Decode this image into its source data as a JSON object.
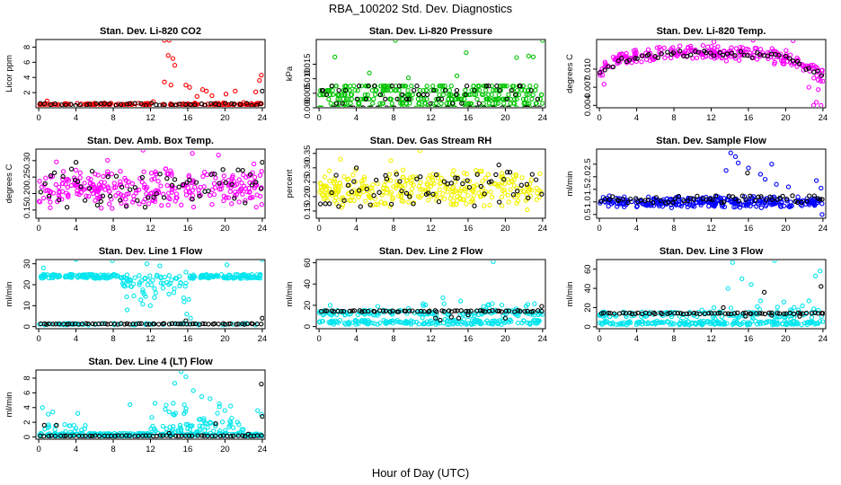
{
  "figure": {
    "title": "RBA_100202  Std. Dev. Diagnostics",
    "xlabel": "Hour of Day (UTC)"
  },
  "chart_data": [
    {
      "type": "scatter",
      "title": "Stan. Dev. Li-820 CO2",
      "ylabel": "Licor ppm",
      "xlim": [
        -0.3,
        24.3
      ],
      "ylim": [
        0,
        9
      ],
      "xticks": [
        0,
        4,
        8,
        12,
        16,
        20,
        24
      ],
      "xtick_labels": [
        "0",
        "4",
        "8",
        "12",
        "16",
        "20",
        "24"
      ],
      "yticks": [
        2,
        4,
        6,
        8
      ],
      "ytick_labels": [
        "2",
        "4",
        "6",
        "8"
      ],
      "color": "#ff0000",
      "series_colors": {
        "main": "#ff0000",
        "highlight": "#000000"
      },
      "gen": {
        "kind": "base",
        "base": 0.45,
        "amp": 0.25,
        "n": 170,
        "spikes": [
          [
            13.5,
            8.9
          ],
          [
            14.0,
            8.9
          ],
          [
            13.9,
            6.9
          ],
          [
            14.4,
            6.5
          ],
          [
            14.6,
            5.6
          ],
          [
            13.5,
            3.4
          ],
          [
            14.2,
            3.0
          ],
          [
            15.8,
            3.0
          ],
          [
            16.2,
            2.7
          ],
          [
            17.6,
            2.4
          ],
          [
            18.0,
            2.2
          ],
          [
            17.0,
            1.5
          ],
          [
            18.6,
            1.6
          ],
          [
            20.1,
            1.8
          ],
          [
            21.1,
            2.2
          ],
          [
            23.9,
            4.3
          ],
          [
            23.7,
            3.6
          ],
          [
            23.3,
            2.1
          ],
          [
            0.9,
            0.9
          ],
          [
            12.3,
            0.8
          ],
          [
            10.7,
            0.6
          ]
        ]
      },
      "hgen": {
        "base": 0.45,
        "amp": 0.15,
        "n": 45,
        "spikes": [
          [
            24.0,
            2.2
          ]
        ]
      }
    },
    {
      "type": "scatter",
      "title": "Stan. Dev. Li-820 Pressure",
      "ylabel": "kPa",
      "xlim": [
        -0.3,
        24.3
      ],
      "ylim": [
        0,
        0.0235
      ],
      "xticks": [
        0,
        4,
        8,
        12,
        16,
        20,
        24
      ],
      "xtick_labels": [
        "0",
        "4",
        "8",
        "12",
        "16",
        "20",
        "24"
      ],
      "yticks": [
        0,
        0.005,
        0.01,
        0.015
      ],
      "ytick_labels": [
        "0.000",
        "0.005",
        "0.010",
        "0.015"
      ],
      "color": "#00c400",
      "series_colors": {
        "main": "#00c400",
        "highlight": "#000000"
      },
      "gen": {
        "kind": "bands",
        "levels": [
          0.0,
          0.0015,
          0.003,
          0.0045,
          0.006,
          0.0075
        ],
        "n": 340,
        "spikes": [
          [
            8.2,
            0.0232
          ],
          [
            24.0,
            0.0232
          ],
          [
            1.7,
            0.0175
          ],
          [
            15.8,
            0.019
          ],
          [
            21.2,
            0.0173
          ],
          [
            22.5,
            0.0178
          ],
          [
            23.0,
            0.0175
          ],
          [
            5.4,
            0.012
          ],
          [
            14.8,
            0.011
          ],
          [
            9.6,
            0.0103
          ]
        ]
      },
      "hgen": {
        "kind": "bands",
        "levels": [
          0.0,
          0.0015,
          0.003,
          0.0045,
          0.006,
          0.0075
        ],
        "n": 70,
        "spikes": []
      }
    },
    {
      "type": "scatter",
      "title": "Stan. Dev. Li-820 Temp.",
      "ylabel": "degrees C",
      "xlim": [
        -0.3,
        24.3
      ],
      "ylim": [
        0.0036,
        0.0149
      ],
      "xticks": [
        0,
        4,
        8,
        12,
        16,
        20,
        24
      ],
      "xtick_labels": [
        "0",
        "4",
        "8",
        "12",
        "16",
        "20",
        "24"
      ],
      "yticks": [
        0.004,
        0.007,
        0.01
      ],
      "ytick_labels": [
        "0.004",
        "0.007",
        "0.010"
      ],
      "color": "#ff00ff",
      "series_colors": {
        "main": "#ff00ff",
        "highlight": "#000000"
      },
      "gen": {
        "kind": "curve",
        "pts": [
          [
            0,
            0.0095
          ],
          [
            2,
            0.0115
          ],
          [
            4,
            0.012
          ],
          [
            8,
            0.0128
          ],
          [
            12,
            0.0127
          ],
          [
            16,
            0.0125
          ],
          [
            20,
            0.012
          ],
          [
            22,
            0.0105
          ],
          [
            24,
            0.009
          ]
        ],
        "amp": 0.0014,
        "n": 260,
        "spikes": [
          [
            23.0,
            0.004
          ],
          [
            23.3,
            0.0045
          ],
          [
            23.8,
            0.004
          ],
          [
            12.3,
            0.0145
          ],
          [
            20.8,
            0.0147
          ],
          [
            16.5,
            0.0148
          ],
          [
            0.5,
            0.0075
          ],
          [
            22.5,
            0.007
          ],
          [
            23.5,
            0.0066
          ]
        ]
      },
      "hgen": {
        "kind": "curve",
        "pts": [
          [
            0,
            0.0095
          ],
          [
            2,
            0.0112
          ],
          [
            4,
            0.0118
          ],
          [
            8,
            0.0125
          ],
          [
            12,
            0.0126
          ],
          [
            16,
            0.0124
          ],
          [
            20,
            0.012
          ],
          [
            22,
            0.0105
          ],
          [
            24,
            0.009
          ]
        ],
        "amp": 0.0005,
        "n": 55,
        "spikes": []
      }
    },
    {
      "type": "scatter",
      "title": "Stan. Dev. Amb. Box Temp.",
      "ylabel": "degrees C",
      "xlim": [
        -0.3,
        24.3
      ],
      "ylim": [
        0.125,
        0.335
      ],
      "xticks": [
        0,
        4,
        8,
        12,
        16,
        20,
        24
      ],
      "xtick_labels": [
        "0",
        "4",
        "8",
        "12",
        "16",
        "20",
        "24"
      ],
      "yticks": [
        0.15,
        0.2,
        0.25,
        0.3
      ],
      "ytick_labels": [
        "0.15",
        "0.20",
        "0.25",
        "0.30"
      ],
      "color": "#ff00ff",
      "series_colors": {
        "main": "#ff00ff",
        "highlight": "#000000"
      },
      "gen": {
        "kind": "base",
        "base": 0.215,
        "amp": 0.065,
        "n": 300,
        "spikes": [
          [
            11.2,
            0.332
          ],
          [
            16.5,
            0.322
          ],
          [
            19.3,
            0.317
          ],
          [
            7.4,
            0.301
          ],
          [
            1.9,
            0.296
          ],
          [
            23.1,
            0.29
          ]
        ]
      },
      "hgen": {
        "base": 0.215,
        "amp": 0.06,
        "n": 60,
        "spikes": [
          [
            24.0,
            0.295
          ],
          [
            4.0,
            0.295
          ]
        ]
      }
    },
    {
      "type": "scatter",
      "title": "Stan. Dev. Gas Stream RH",
      "ylabel": "percent",
      "xlim": [
        -0.3,
        24.3
      ],
      "ylim": [
        0.125,
        0.365
      ],
      "xticks": [
        0,
        4,
        8,
        12,
        16,
        20,
        24
      ],
      "xtick_labels": [
        "0",
        "4",
        "8",
        "12",
        "16",
        "20",
        "24"
      ],
      "yticks": [
        0.15,
        0.2,
        0.25,
        0.3,
        0.35
      ],
      "ytick_labels": [
        "0.15",
        "0.20",
        "0.25",
        "0.30",
        "0.35"
      ],
      "color": "#f2f200",
      "series_colors": {
        "main": "#f2f200",
        "highlight": "#000000"
      },
      "gen": {
        "kind": "base",
        "base": 0.225,
        "amp": 0.075,
        "n": 320,
        "spikes": [
          [
            10.8,
            0.36
          ],
          [
            2.3,
            0.33
          ],
          [
            7.7,
            0.325
          ]
        ]
      },
      "hgen": {
        "base": 0.225,
        "amp": 0.06,
        "n": 60,
        "spikes": [
          [
            4.0,
            0.3
          ],
          [
            19.3,
            0.31
          ]
        ]
      }
    },
    {
      "type": "scatter",
      "title": "Stan. Dev. Sample Flow",
      "ylabel": "ml/min",
      "xlim": [
        -0.3,
        24.3
      ],
      "ylim": [
        0.35,
        3.1
      ],
      "xticks": [
        0,
        4,
        8,
        12,
        16,
        20,
        24
      ],
      "xtick_labels": [
        "0",
        "4",
        "8",
        "12",
        "16",
        "20",
        "24"
      ],
      "yticks": [
        0.5,
        1.0,
        1.5,
        2.0,
        2.5
      ],
      "ytick_labels": [
        "0.5",
        "1.0",
        "1.5",
        "2.0",
        "2.5"
      ],
      "color": "#0000ff",
      "series_colors": {
        "main": "#0000ff",
        "highlight": "#000000"
      },
      "gen": {
        "kind": "base",
        "base": 1.0,
        "amp": 0.25,
        "n": 300,
        "spikes": [
          [
            14.1,
            2.95
          ],
          [
            14.6,
            2.8
          ],
          [
            13.6,
            2.25
          ],
          [
            18.5,
            2.5
          ],
          [
            16.0,
            2.35
          ],
          [
            17.3,
            2.1
          ],
          [
            17.8,
            1.9
          ],
          [
            19.0,
            1.7
          ],
          [
            20.3,
            1.6
          ],
          [
            23.3,
            1.85
          ],
          [
            23.8,
            1.55
          ],
          [
            23.9,
            0.5
          ],
          [
            14.9,
            2.55
          ]
        ]
      },
      "hgen": {
        "base": 1.1,
        "amp": 0.15,
        "n": 60,
        "spikes": [
          [
            15.9,
            2.15
          ],
          [
            23.7,
            1.1
          ]
        ]
      }
    },
    {
      "type": "scatter",
      "title": "Stan. Dev. Line 1 Flow",
      "ylabel": "ml/min",
      "xlim": [
        -0.3,
        24.3
      ],
      "ylim": [
        -1,
        32
      ],
      "xticks": [
        0,
        4,
        8,
        12,
        16,
        20,
        24
      ],
      "xtick_labels": [
        "0",
        "4",
        "8",
        "12",
        "16",
        "20",
        "24"
      ],
      "yticks": [
        0,
        10,
        20,
        30
      ],
      "ytick_labels": [
        "0",
        "10",
        "20",
        "30"
      ],
      "color": "#00e5ee",
      "series_colors": {
        "main": "#00e5ee",
        "highlight": "#000000"
      },
      "gen": {
        "kind": "line1",
        "n": 330,
        "spikes": [
          [
            0.5,
            28
          ],
          [
            4,
            32
          ],
          [
            7.9,
            31.5
          ],
          [
            9.5,
            8
          ],
          [
            10.8,
            20
          ],
          [
            11.6,
            30
          ],
          [
            13.0,
            29
          ],
          [
            15.8,
            26
          ],
          [
            16.1,
            13
          ],
          [
            15.9,
            6
          ],
          [
            16.3,
            4
          ],
          [
            24,
            32
          ],
          [
            20.2,
            29.5
          ]
        ]
      },
      "hgen": {
        "base": 1.3,
        "amp": 0.2,
        "n": 70,
        "spikes": [
          [
            24.0,
            4.0
          ],
          [
            15.8,
            2.8
          ]
        ]
      }
    },
    {
      "type": "scatter",
      "title": "Stan. Dev. Line 2 Flow",
      "ylabel": "ml/min",
      "xlim": [
        -0.3,
        24.3
      ],
      "ylim": [
        -2,
        63
      ],
      "xticks": [
        0,
        4,
        8,
        12,
        16,
        20,
        24
      ],
      "xtick_labels": [
        "0",
        "4",
        "8",
        "12",
        "16",
        "20",
        "24"
      ],
      "yticks": [
        0,
        20,
        40,
        60
      ],
      "ytick_labels": [
        "0",
        "20",
        "40",
        "60"
      ],
      "color": "#00e5ee",
      "series_colors": {
        "main": "#00e5ee",
        "highlight": "#000000"
      },
      "gen": {
        "kind": "line2",
        "n": 330,
        "spikes": [
          [
            18.7,
            61
          ],
          [
            13.3,
            27
          ],
          [
            15.2,
            24
          ],
          [
            9.6,
            17
          ],
          [
            1.2,
            20
          ],
          [
            6.3,
            19
          ]
        ]
      },
      "hgen": {
        "base": 14.5,
        "amp": 0.6,
        "n": 65,
        "spikes": [
          [
            12.5,
            8
          ],
          [
            13.0,
            6
          ],
          [
            14.2,
            9
          ],
          [
            15.0,
            8
          ],
          [
            16.0,
            11
          ],
          [
            20.0,
            8
          ],
          [
            23.9,
            19
          ]
        ]
      }
    },
    {
      "type": "scatter",
      "title": "Stan. Dev. Line 3 Flow",
      "ylabel": "ml/min",
      "xlim": [
        -0.3,
        24.3
      ],
      "ylim": [
        -2,
        70
      ],
      "xticks": [
        0,
        4,
        8,
        12,
        16,
        20,
        24
      ],
      "xtick_labels": [
        "0",
        "4",
        "8",
        "12",
        "16",
        "20",
        "24"
      ],
      "yticks": [
        0,
        20,
        40,
        60
      ],
      "ytick_labels": [
        "0",
        "20",
        "40",
        "60"
      ],
      "color": "#00e5ee",
      "series_colors": {
        "main": "#00e5ee",
        "highlight": "#000000"
      },
      "gen": {
        "kind": "line2",
        "n": 330,
        "spikes": [
          [
            14.3,
            67
          ],
          [
            18.8,
            69
          ],
          [
            15.3,
            50
          ],
          [
            13.8,
            40
          ],
          [
            16.3,
            44
          ],
          [
            17.3,
            27
          ],
          [
            19.8,
            26
          ],
          [
            23.7,
            58
          ],
          [
            23.2,
            53
          ],
          [
            22.5,
            27
          ],
          [
            12.3,
            20
          ]
        ]
      },
      "hgen": {
        "base": 14.0,
        "amp": 0.6,
        "n": 65,
        "spikes": [
          [
            23.8,
            42
          ],
          [
            17.7,
            36
          ],
          [
            13.3,
            20
          ],
          [
            15.7,
            11
          ],
          [
            18.5,
            12
          ],
          [
            21.5,
            11
          ],
          [
            24.0,
            14
          ]
        ]
      }
    },
    {
      "type": "scatter",
      "title": "Stan. Dev. Line 4 (LT) Flow",
      "ylabel": "ml/min",
      "xlim": [
        -0.3,
        24.3
      ],
      "ylim": [
        -0.3,
        9.1
      ],
      "xticks": [
        0,
        4,
        8,
        12,
        16,
        20,
        24
      ],
      "xtick_labels": [
        "0",
        "4",
        "8",
        "12",
        "16",
        "20",
        "24"
      ],
      "yticks": [
        0,
        2,
        4,
        6,
        8
      ],
      "ytick_labels": [
        "0",
        "2",
        "4",
        "6",
        "8"
      ],
      "color": "#00e5ee",
      "series_colors": {
        "main": "#00e5ee",
        "highlight": "#000000"
      },
      "gen": {
        "kind": "line4",
        "n": 300,
        "spikes": [
          [
            15.3,
            8.9
          ],
          [
            15.8,
            8.2
          ],
          [
            14.6,
            7.3
          ],
          [
            16.6,
            6.3
          ],
          [
            17.5,
            5.5
          ],
          [
            18.4,
            5.2
          ],
          [
            19.4,
            4.5
          ],
          [
            20.6,
            4.2
          ],
          [
            9.8,
            4.4
          ],
          [
            4.2,
            3.2
          ],
          [
            0.4,
            4.0
          ],
          [
            1.5,
            3.4
          ],
          [
            23.5,
            3.6
          ],
          [
            23.9,
            3.1
          ]
        ]
      },
      "hgen": {
        "base": 0.15,
        "amp": 0.05,
        "n": 60,
        "spikes": [
          [
            23.9,
            7.2
          ],
          [
            24.0,
            2.8
          ],
          [
            19.0,
            1.8
          ],
          [
            0.6,
            1.6
          ],
          [
            1.9,
            1.6
          ],
          [
            14.0,
            0.5
          ],
          [
            22.5,
            0.4
          ]
        ]
      }
    }
  ]
}
